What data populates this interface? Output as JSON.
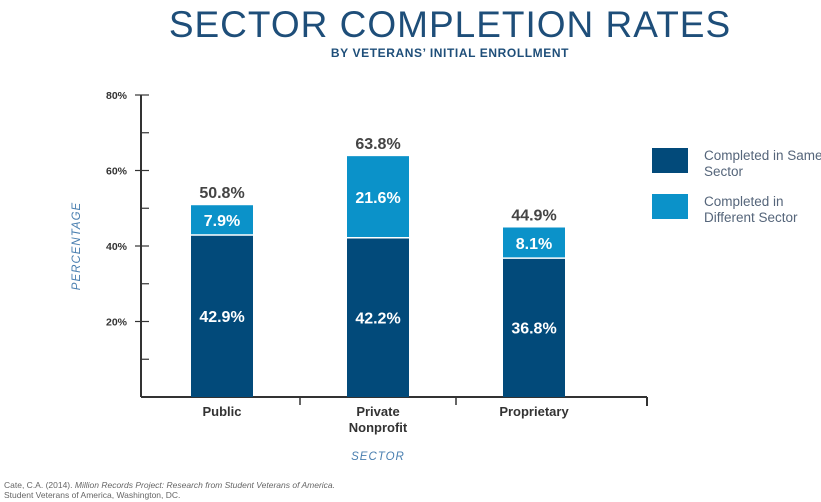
{
  "title": "SECTOR COMPLETION RATES",
  "subtitle": "BY VETERANS’ INITIAL ENROLLMENT",
  "colors": {
    "same_sector": "#024a7a",
    "different_sector": "#0b92c9",
    "axis": "#333333",
    "title": "#1e4e79",
    "axis_label": "#4a7fb0"
  },
  "chart_data": {
    "type": "bar",
    "stacked": true,
    "categories": [
      "Public",
      "Private\nNonprofit",
      "Proprietary"
    ],
    "series": [
      {
        "name": "Completed in Same Sector",
        "values": [
          42.9,
          42.2,
          36.8
        ]
      },
      {
        "name": "Completed in Different Sector",
        "values": [
          7.9,
          21.6,
          8.1
        ]
      }
    ],
    "totals": [
      50.8,
      63.8,
      44.9
    ],
    "segment_labels": [
      [
        "42.9%",
        "7.9%"
      ],
      [
        "42.2%",
        "21.6%"
      ],
      [
        "36.8%",
        "8.1%"
      ]
    ],
    "total_labels": [
      "50.8%",
      "63.8%",
      "44.9%"
    ],
    "xlabel": "SECTOR",
    "ylabel": "PERCENTAGE",
    "ylim": [
      0,
      80
    ],
    "y_ticks": [
      20,
      40,
      60,
      80
    ],
    "y_tick_labels": [
      "20%",
      "40%",
      "60%",
      "80%"
    ],
    "y_minor_step": 10,
    "legend_position": "right",
    "grid": false
  },
  "legend": [
    {
      "label": "Completed in Same Sector"
    },
    {
      "label": "Completed in Different Sector"
    }
  ],
  "citation": {
    "line1_prefix": "Cate, C.A. (2014). ",
    "line1_italic": "Million Records Project: Research from Student Veterans of America.",
    "line2": "Student Veterans of America, Washington, DC."
  }
}
